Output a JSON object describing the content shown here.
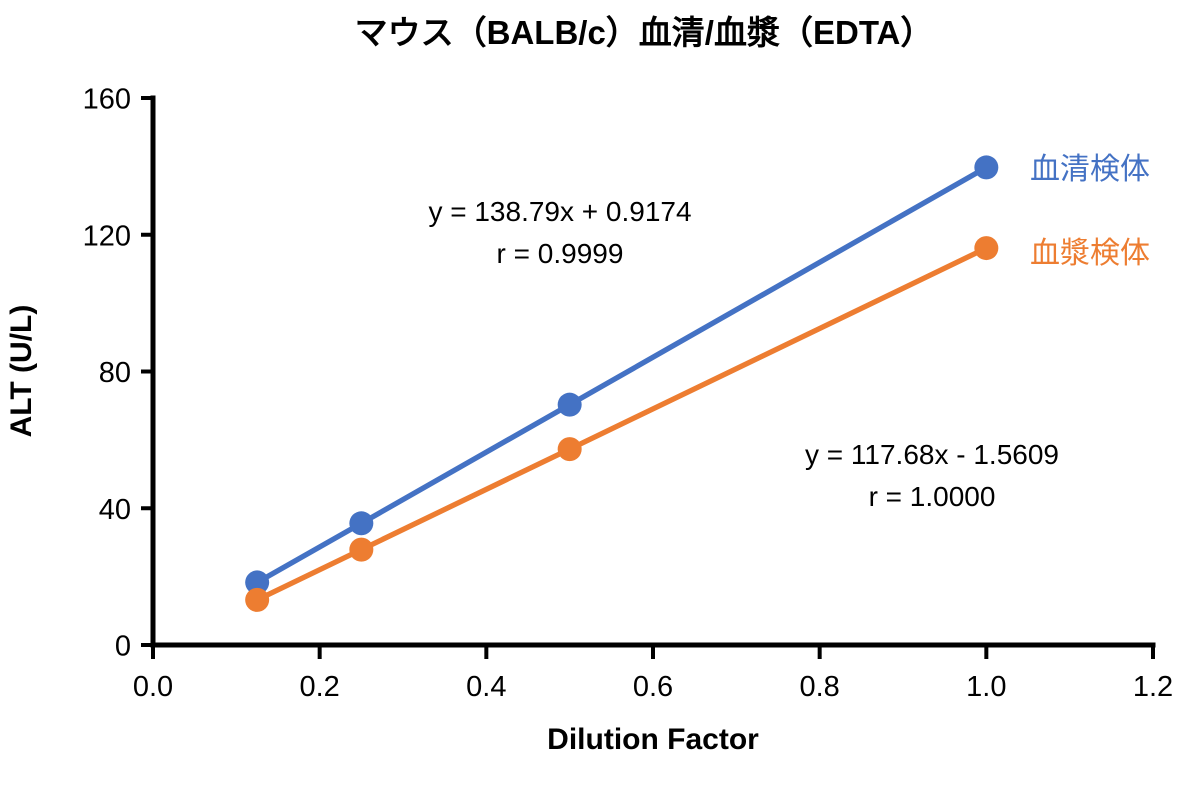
{
  "chart_data": {
    "type": "line",
    "title": "マウス（BALB/c）血清/血漿（EDTA）",
    "xlabel": "Dilution Factor",
    "ylabel": "ALT (U/L)",
    "xlim": [
      0,
      1.2
    ],
    "ylim": [
      0,
      160
    ],
    "x_tick_values": [
      0,
      0.2,
      0.4,
      0.6,
      0.8,
      1.0,
      1.2
    ],
    "x_tick_labels": [
      "0.0",
      "0.2",
      "0.4",
      "0.6",
      "0.8",
      "1.0",
      "1.2"
    ],
    "y_tick_values": [
      0,
      40,
      80,
      120,
      160
    ],
    "y_tick_labels": [
      "0",
      "40",
      "80",
      "120",
      "160"
    ],
    "grid": false,
    "legend_position": "labels-right-of-last-point",
    "x": [
      0.125,
      0.25,
      0.5,
      1.0
    ],
    "series": [
      {
        "name": "血清検体",
        "color": "#4472C4",
        "values": [
          18.3,
          35.6,
          70.3,
          139.7
        ],
        "equation": "y = 138.79x + 0.9174",
        "r_label": "r = 0.9999"
      },
      {
        "name": "血漿検体",
        "color": "#ED7D31",
        "values": [
          13.2,
          27.9,
          57.3,
          116.1
        ],
        "equation": "y = 117.68x - 1.5609",
        "r_label": "r = 1.0000"
      }
    ],
    "axis_color": "#000000",
    "text_color": "#000000"
  }
}
